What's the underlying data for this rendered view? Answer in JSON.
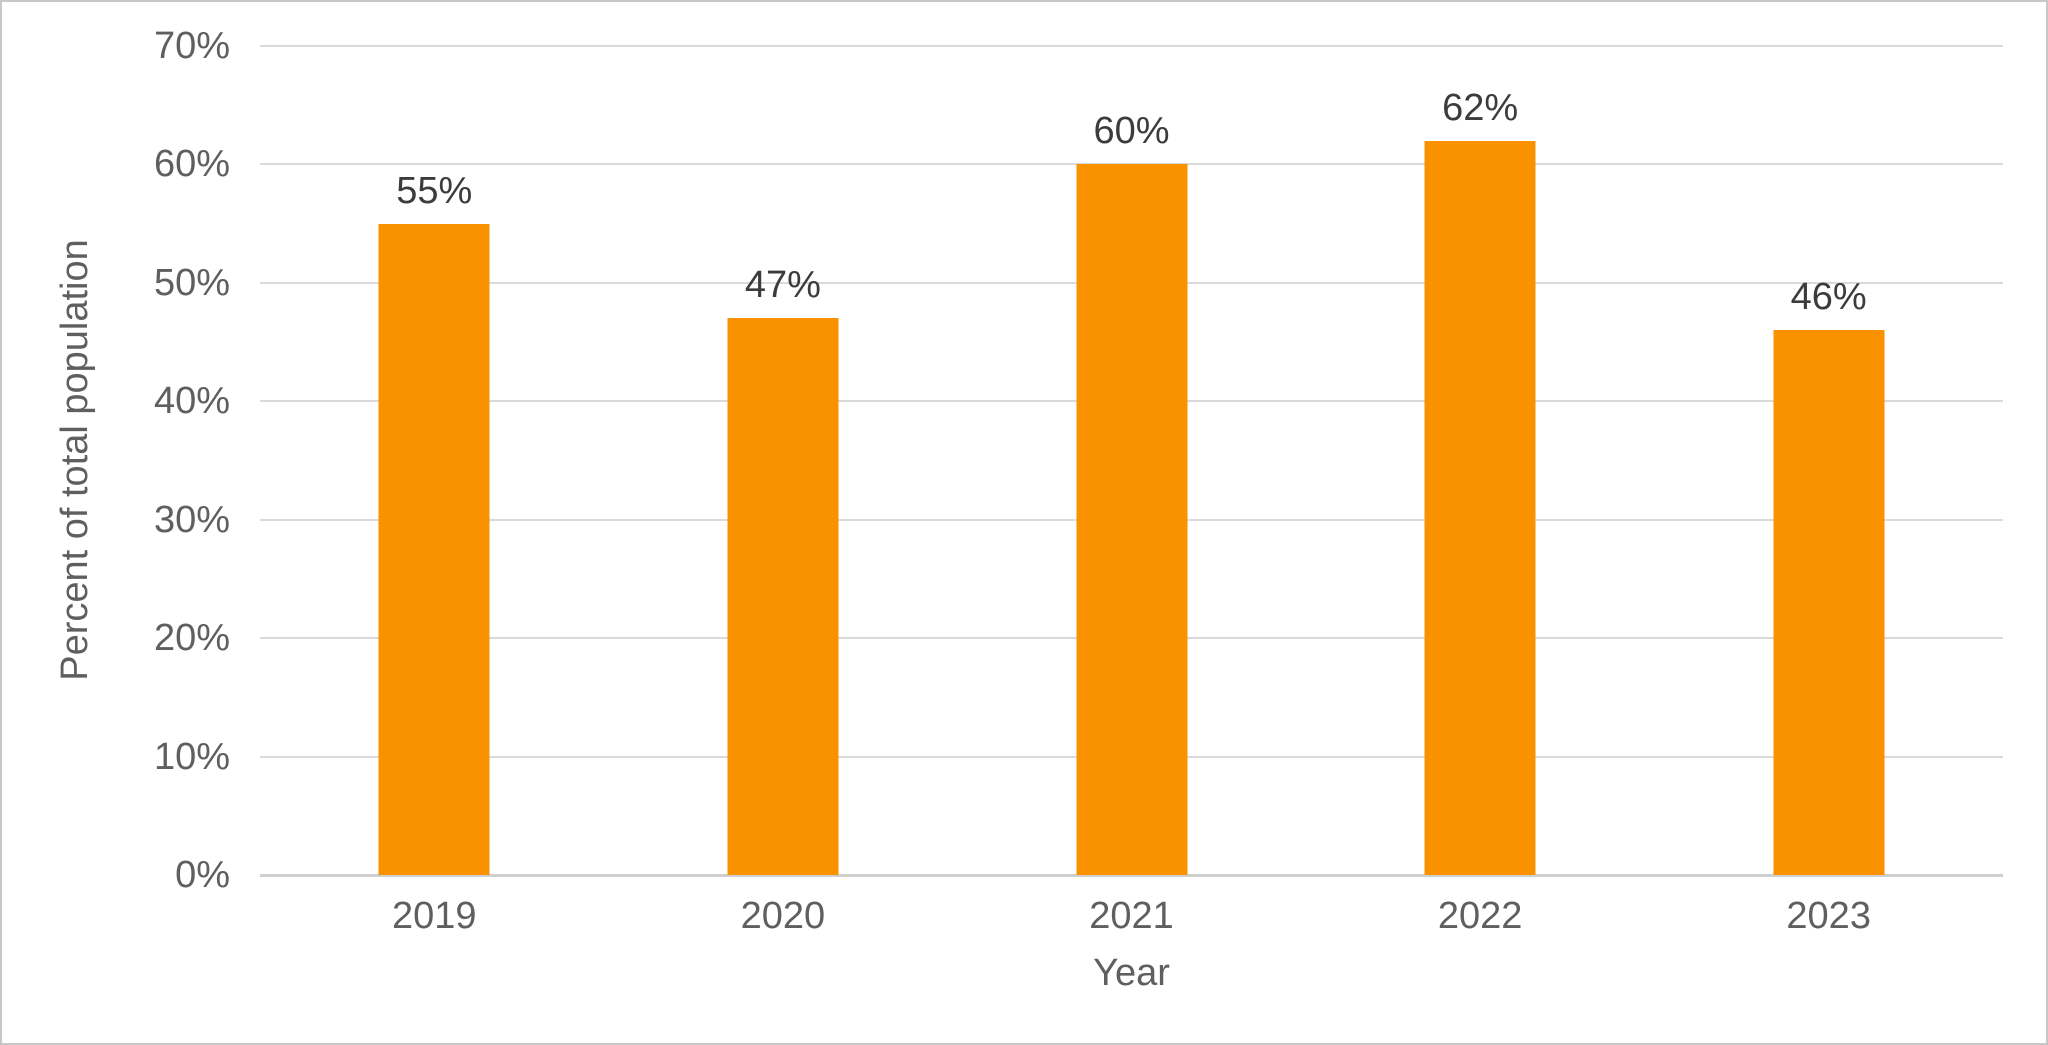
{
  "chart_data": {
    "type": "bar",
    "title": "",
    "categories": [
      "2019",
      "2020",
      "2021",
      "2022",
      "2023"
    ],
    "values": [
      55,
      47,
      60,
      62,
      46
    ],
    "data_labels": [
      "55%",
      "47%",
      "60%",
      "62%",
      "46%"
    ],
    "xlabel": "Year",
    "ylabel": "Percent of total population",
    "ylim": [
      0,
      70
    ],
    "ytick_step": 10,
    "ytick_labels": [
      "0%",
      "10%",
      "20%",
      "30%",
      "40%",
      "50%",
      "60%",
      "70%"
    ],
    "grid": true,
    "legend": "none",
    "colors": {
      "bar": "#FA9200",
      "gridline": "#dadada",
      "axis_line": "#cfcfcf",
      "tick_label": "#5f5f5f",
      "data_label": "#3c3c3c",
      "frame_border": "#c8c8c8",
      "background": "#ffffff"
    }
  }
}
